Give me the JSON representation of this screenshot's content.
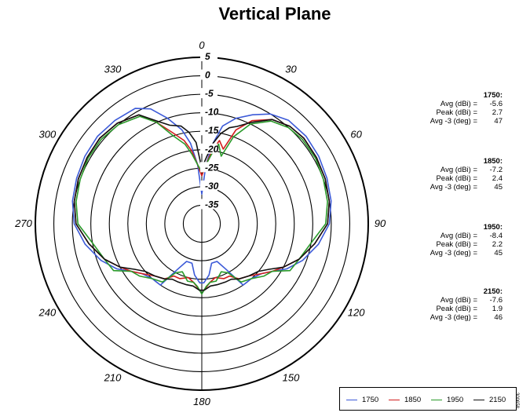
{
  "chart_data": {
    "type": "polar-line",
    "title": "Vertical Plane",
    "angle_labels": [
      "0",
      "30",
      "60",
      "90",
      "120",
      "150",
      "180",
      "210",
      "240",
      "270",
      "300",
      "330"
    ],
    "ring_labels": [
      "5",
      "0",
      "-5",
      "-10",
      "-15",
      "-20",
      "-25",
      "-30",
      "-35"
    ],
    "r_range": [
      -40,
      5
    ],
    "grid": true,
    "legend_position": "bottom-right",
    "series": [
      {
        "name": "1750",
        "color": "#3c5ad8",
        "points": [
          [
            0,
            -32
          ],
          [
            4,
            -24
          ],
          [
            8,
            -18
          ],
          [
            12,
            -13
          ],
          [
            18,
            -10
          ],
          [
            25,
            -7.5
          ],
          [
            32,
            -5
          ],
          [
            40,
            -3.5
          ],
          [
            50,
            -3.2
          ],
          [
            60,
            -3.5
          ],
          [
            70,
            -4
          ],
          [
            80,
            -4.5
          ],
          [
            90,
            -5.5
          ],
          [
            100,
            -8
          ],
          [
            110,
            -11
          ],
          [
            118,
            -14
          ],
          [
            124,
            -17
          ],
          [
            130,
            -19
          ],
          [
            138,
            -20
          ],
          [
            146,
            -20
          ],
          [
            152,
            -26
          ],
          [
            158,
            -29
          ],
          [
            166,
            -29
          ],
          [
            172,
            -26
          ],
          [
            178,
            -24
          ],
          [
            182,
            -24
          ],
          [
            188,
            -26
          ],
          [
            194,
            -29
          ],
          [
            202,
            -29
          ],
          [
            208,
            -26
          ],
          [
            214,
            -20
          ],
          [
            222,
            -20
          ],
          [
            230,
            -19
          ],
          [
            236,
            -17
          ],
          [
            242,
            -14
          ],
          [
            250,
            -11
          ],
          [
            260,
            -8
          ],
          [
            270,
            -5.5
          ],
          [
            280,
            -4.5
          ],
          [
            290,
            -4
          ],
          [
            300,
            -3.5
          ],
          [
            310,
            -3.2
          ],
          [
            320,
            -3.5
          ],
          [
            330,
            -4
          ],
          [
            336,
            -6
          ],
          [
            342,
            -10
          ],
          [
            348,
            -14
          ],
          [
            352,
            -18
          ],
          [
            356,
            -24
          ],
          [
            360,
            -32
          ]
        ]
      },
      {
        "name": "1850",
        "color": "#d21e1e",
        "points": [
          [
            0,
            -27
          ],
          [
            4,
            -24
          ],
          [
            8,
            -20
          ],
          [
            12,
            -17
          ],
          [
            16,
            -19
          ],
          [
            20,
            -13
          ],
          [
            26,
            -9
          ],
          [
            34,
            -6
          ],
          [
            42,
            -4.5
          ],
          [
            50,
            -4
          ],
          [
            60,
            -4.2
          ],
          [
            70,
            -4.5
          ],
          [
            80,
            -5
          ],
          [
            90,
            -6
          ],
          [
            100,
            -9
          ],
          [
            110,
            -12
          ],
          [
            118,
            -15
          ],
          [
            124,
            -17
          ],
          [
            130,
            -19
          ],
          [
            138,
            -21
          ],
          [
            146,
            -22
          ],
          [
            152,
            -24
          ],
          [
            158,
            -24
          ],
          [
            166,
            -25
          ],
          [
            172,
            -24
          ],
          [
            178,
            -22
          ],
          [
            182,
            -22
          ],
          [
            188,
            -24
          ],
          [
            194,
            -25
          ],
          [
            202,
            -24
          ],
          [
            208,
            -24
          ],
          [
            214,
            -22
          ],
          [
            222,
            -21
          ],
          [
            230,
            -19
          ],
          [
            236,
            -17
          ],
          [
            242,
            -15
          ],
          [
            250,
            -12
          ],
          [
            260,
            -9
          ],
          [
            270,
            -6
          ],
          [
            280,
            -5
          ],
          [
            290,
            -4.5
          ],
          [
            300,
            -4.2
          ],
          [
            310,
            -4
          ],
          [
            320,
            -4.5
          ],
          [
            330,
            -6
          ],
          [
            336,
            -10
          ],
          [
            342,
            -14
          ],
          [
            348,
            -17
          ],
          [
            352,
            -20
          ],
          [
            356,
            -24
          ],
          [
            360,
            -27
          ]
        ]
      },
      {
        "name": "1950",
        "color": "#2a9a2a",
        "points": [
          [
            0,
            -26
          ],
          [
            4,
            -24
          ],
          [
            8,
            -21
          ],
          [
            12,
            -18
          ],
          [
            16,
            -21
          ],
          [
            20,
            -15
          ],
          [
            26,
            -10
          ],
          [
            34,
            -6.5
          ],
          [
            42,
            -5
          ],
          [
            50,
            -4.5
          ],
          [
            60,
            -4.5
          ],
          [
            70,
            -5
          ],
          [
            80,
            -5.5
          ],
          [
            90,
            -6.5
          ],
          [
            100,
            -10
          ],
          [
            110,
            -12
          ],
          [
            118,
            -13
          ],
          [
            124,
            -17
          ],
          [
            130,
            -18
          ],
          [
            138,
            -20
          ],
          [
            146,
            -21
          ],
          [
            152,
            -25
          ],
          [
            158,
            -26
          ],
          [
            166,
            -24
          ],
          [
            172,
            -24
          ],
          [
            176,
            -23
          ],
          [
            180,
            -21
          ],
          [
            184,
            -23
          ],
          [
            188,
            -24
          ],
          [
            194,
            -24
          ],
          [
            202,
            -26
          ],
          [
            208,
            -25
          ],
          [
            214,
            -21
          ],
          [
            222,
            -20
          ],
          [
            230,
            -18
          ],
          [
            236,
            -17
          ],
          [
            242,
            -13
          ],
          [
            250,
            -12
          ],
          [
            260,
            -10
          ],
          [
            270,
            -6.5
          ],
          [
            280,
            -5.5
          ],
          [
            290,
            -5
          ],
          [
            300,
            -4.5
          ],
          [
            310,
            -4.5
          ],
          [
            320,
            -5
          ],
          [
            330,
            -6.5
          ],
          [
            336,
            -10
          ],
          [
            342,
            -15
          ],
          [
            348,
            -18
          ],
          [
            352,
            -21
          ],
          [
            356,
            -24
          ],
          [
            360,
            -26
          ]
        ]
      },
      {
        "name": "2150",
        "color": "#111111",
        "points": [
          [
            0,
            -25
          ],
          [
            4,
            -22
          ],
          [
            8,
            -18
          ],
          [
            12,
            -15
          ],
          [
            16,
            -13
          ],
          [
            20,
            -12
          ],
          [
            26,
            -9.5
          ],
          [
            34,
            -6
          ],
          [
            42,
            -4.5
          ],
          [
            50,
            -4
          ],
          [
            60,
            -4.2
          ],
          [
            70,
            -4.5
          ],
          [
            80,
            -5
          ],
          [
            90,
            -6
          ],
          [
            100,
            -9
          ],
          [
            110,
            -12
          ],
          [
            118,
            -15
          ],
          [
            124,
            -18
          ],
          [
            130,
            -20
          ],
          [
            138,
            -21
          ],
          [
            146,
            -22
          ],
          [
            152,
            -23
          ],
          [
            158,
            -23
          ],
          [
            166,
            -23
          ],
          [
            172,
            -23
          ],
          [
            178,
            -22
          ],
          [
            182,
            -22
          ],
          [
            188,
            -23
          ],
          [
            194,
            -23
          ],
          [
            202,
            -23
          ],
          [
            208,
            -23
          ],
          [
            214,
            -22
          ],
          [
            222,
            -21
          ],
          [
            230,
            -20
          ],
          [
            236,
            -18
          ],
          [
            242,
            -15
          ],
          [
            250,
            -12
          ],
          [
            260,
            -9
          ],
          [
            270,
            -6
          ],
          [
            280,
            -5
          ],
          [
            290,
            -4.5
          ],
          [
            300,
            -4.2
          ],
          [
            310,
            -4
          ],
          [
            320,
            -4.5
          ],
          [
            330,
            -6
          ],
          [
            336,
            -9.5
          ],
          [
            342,
            -12
          ],
          [
            348,
            -13
          ],
          [
            352,
            -15
          ],
          [
            356,
            -18
          ],
          [
            360,
            -25
          ]
        ]
      }
    ]
  },
  "stats": [
    {
      "freq": "1750:",
      "avg_label": "Avg (dBi) =",
      "avg": "-5.6",
      "peak_label": "Peak (dBi) =",
      "peak": "2.7",
      "bw_label": "Avg -3 (deg) =",
      "bw": "47"
    },
    {
      "freq": "1850:",
      "avg_label": "Avg (dBi) =",
      "avg": "-7.2",
      "peak_label": "Peak (dBi) =",
      "peak": "2.4",
      "bw_label": "Avg -3 (deg) =",
      "bw": "45"
    },
    {
      "freq": "1950:",
      "avg_label": "Avg (dBi) =",
      "avg": "-8.4",
      "peak_label": "Peak (dBi) =",
      "peak": "2.2",
      "bw_label": "Avg -3 (deg) =",
      "bw": "45"
    },
    {
      "freq": "2150:",
      "avg_label": "Avg (dBi) =",
      "avg": "-7.6",
      "peak_label": "Peak (dBi) =",
      "peak": "1.9",
      "bw_label": "Avg -3 (deg) =",
      "bw": "46"
    }
  ],
  "figure_code": "300658"
}
